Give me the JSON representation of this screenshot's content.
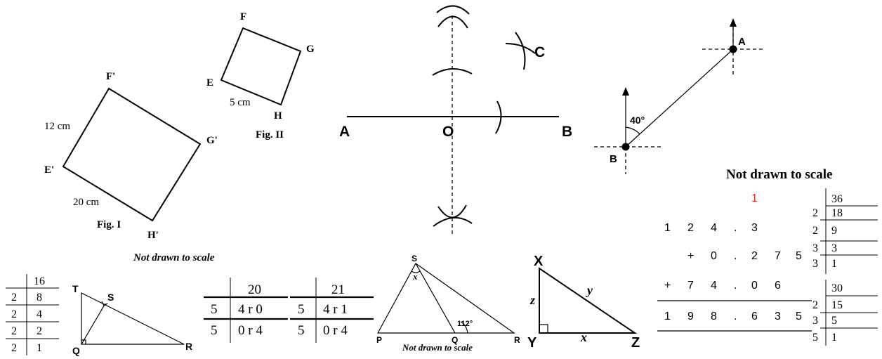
{
  "fig_quadrilaterals": {
    "fig1_label": "Fig. I",
    "fig2_label": "Fig. II",
    "vertices_fig1": {
      "F": "F'",
      "G": "G'",
      "E": "E'",
      "H": "H'"
    },
    "vertices_fig2": {
      "F": "F",
      "G": "G",
      "E": "E",
      "H": "H"
    },
    "side_12": "12 cm",
    "side_20": "20 cm",
    "side_5": "5 cm",
    "note": "Not drawn to scale"
  },
  "bisector_construction": {
    "point_a": "A",
    "point_o": "O",
    "point_b": "B",
    "point_c": "C"
  },
  "bearing_diagram": {
    "point_a": "A",
    "point_b": "B",
    "angle": "40°"
  },
  "addition_section": {
    "note": "Not drawn to scale",
    "carry": "1",
    "row1": [
      "1",
      "2",
      "4",
      ".",
      "3"
    ],
    "row2": [
      "+",
      "0",
      ".",
      "2",
      "7",
      "5"
    ],
    "row3": [
      "+",
      "7",
      "4",
      ".",
      "0",
      "6"
    ],
    "result": [
      "1",
      "9",
      "8",
      ".",
      "6",
      "3",
      "5"
    ]
  },
  "factor_table_36": {
    "top": "36",
    "rows": [
      [
        "2",
        "18"
      ],
      [
        "2",
        "9"
      ],
      [
        "3",
        "3"
      ],
      [
        "3",
        "1"
      ]
    ]
  },
  "factor_table_30": {
    "top": "30",
    "rows": [
      [
        "2",
        "15"
      ],
      [
        "3",
        "5"
      ],
      [
        "5",
        "1"
      ]
    ]
  },
  "factor_table_16": {
    "top": "16",
    "rows": [
      [
        "2",
        "8"
      ],
      [
        "2",
        "4"
      ],
      [
        "2",
        "2"
      ],
      [
        "2",
        "1"
      ]
    ]
  },
  "right_triangle_tqr": {
    "t": "T",
    "s": "S",
    "q": "Q",
    "r": "R"
  },
  "base5_tables": {
    "left": {
      "top": "20",
      "rows": [
        [
          "5",
          "4 r 0"
        ],
        [
          "5",
          "0 r 4"
        ]
      ]
    },
    "right": {
      "top": "21",
      "rows": [
        [
          "5",
          "4 r 1"
        ],
        [
          "5",
          "0 r 4"
        ]
      ]
    }
  },
  "triangle_spqr": {
    "s": "S",
    "p": "P",
    "q": "Q",
    "r": "R",
    "angle_x": "x",
    "angle_q": "112°",
    "note": "Not drawn to scale"
  },
  "triangle_xyz": {
    "x": "X",
    "y": "Y",
    "z": "Z",
    "side_z": "z",
    "side_y": "y",
    "side_x": "x"
  }
}
